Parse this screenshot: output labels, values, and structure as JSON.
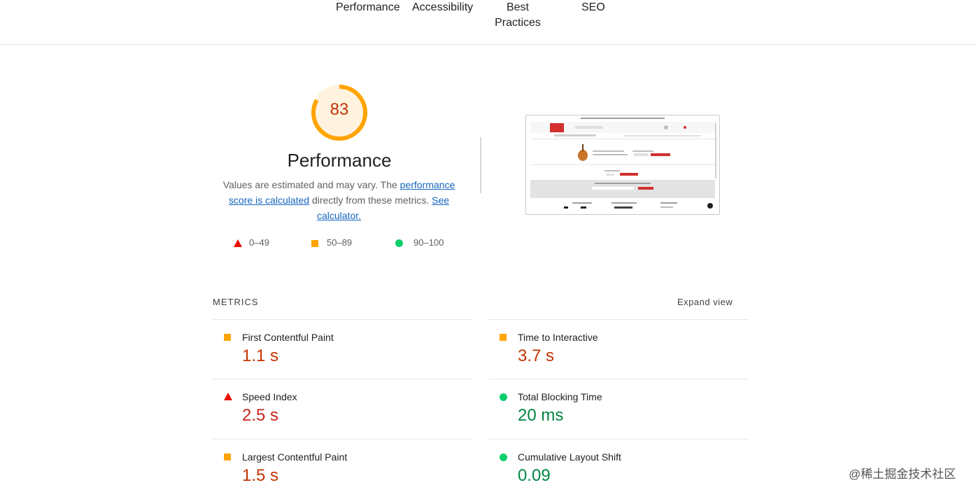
{
  "nav": {
    "tabs": [
      "Performance",
      "Accessibility",
      "Best\nPractices",
      "SEO"
    ]
  },
  "score": {
    "value": "83",
    "fraction": 0.83,
    "color": "#ffa400"
  },
  "category": {
    "title": "Performance",
    "desc_prefix": "Values are estimated and may vary. The ",
    "desc_link1": "performance score is calculated",
    "desc_middle": " directly from these metrics. ",
    "desc_link2": "See calculator."
  },
  "legend": [
    {
      "range": "0–49",
      "icon": "triangle",
      "color": "#eb0f00"
    },
    {
      "range": "50–89",
      "icon": "square",
      "color": "#ffa400"
    },
    {
      "range": "90–100",
      "icon": "circle",
      "color": "#0cce6b"
    }
  ],
  "metrics": {
    "header": "METRICS",
    "expand_label": "Expand view",
    "items": [
      {
        "label": "First Contentful Paint",
        "value": "1.1 s",
        "rating": "average"
      },
      {
        "label": "Time to Interactive",
        "value": "3.7 s",
        "rating": "average"
      },
      {
        "label": "Speed Index",
        "value": "2.5 s",
        "rating": "fail"
      },
      {
        "label": "Total Blocking Time",
        "value": "20 ms",
        "rating": "pass"
      },
      {
        "label": "Largest Contentful Paint",
        "value": "1.5 s",
        "rating": "average"
      },
      {
        "label": "Cumulative Layout Shift",
        "value": "0.09",
        "rating": "pass"
      }
    ]
  },
  "watermark": "@稀土掘金技术社区"
}
